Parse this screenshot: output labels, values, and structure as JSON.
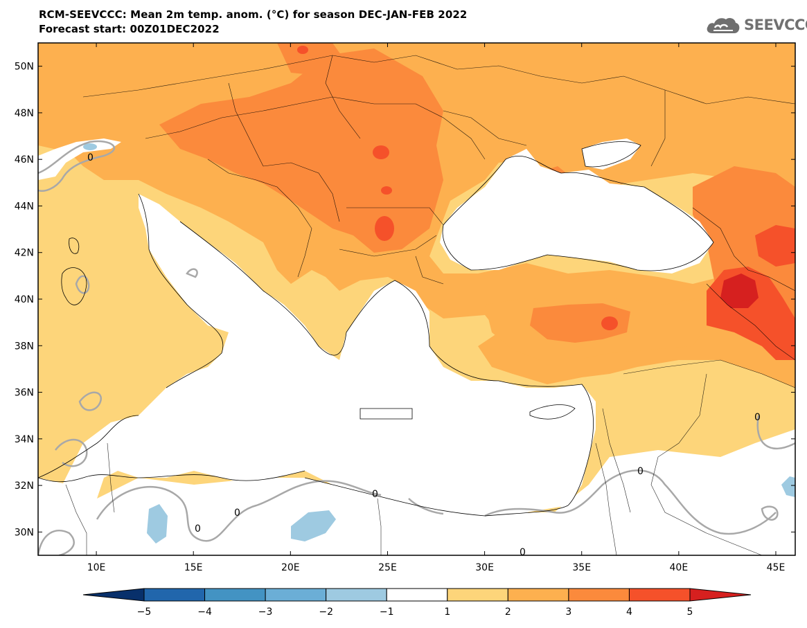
{
  "header": {
    "title": "RCM-SEEVCCC: Mean 2m temp. anom. (°C) for season DEC-JAN-FEB 2022",
    "subtitle": "Forecast start: 00Z01DEC2022"
  },
  "logo": {
    "text": "SEEVCCC",
    "icon": "cloud-icon"
  },
  "map": {
    "lat_ticks": [
      "50N",
      "48N",
      "46N",
      "44N",
      "42N",
      "40N",
      "38N",
      "36N",
      "34N",
      "32N",
      "30N"
    ],
    "lon_ticks": [
      "10E",
      "15E",
      "20E",
      "25E",
      "30E",
      "35E",
      "40E",
      "45E"
    ],
    "lat_range": [
      29,
      51
    ],
    "lon_range": [
      7,
      46
    ],
    "contour_label": "0"
  },
  "colorbar": {
    "labels": [
      "-5",
      "-4",
      "-3",
      "-2",
      "-1",
      "1",
      "2",
      "3",
      "4",
      "5"
    ],
    "colors": [
      "#08306b",
      "#2166ac",
      "#4393c3",
      "#6baed6",
      "#9ecae1",
      "#ffffff",
      "#fdd57a",
      "#fdb04f",
      "#fb8a3c",
      "#f5512a",
      "#d6201f"
    ]
  }
}
